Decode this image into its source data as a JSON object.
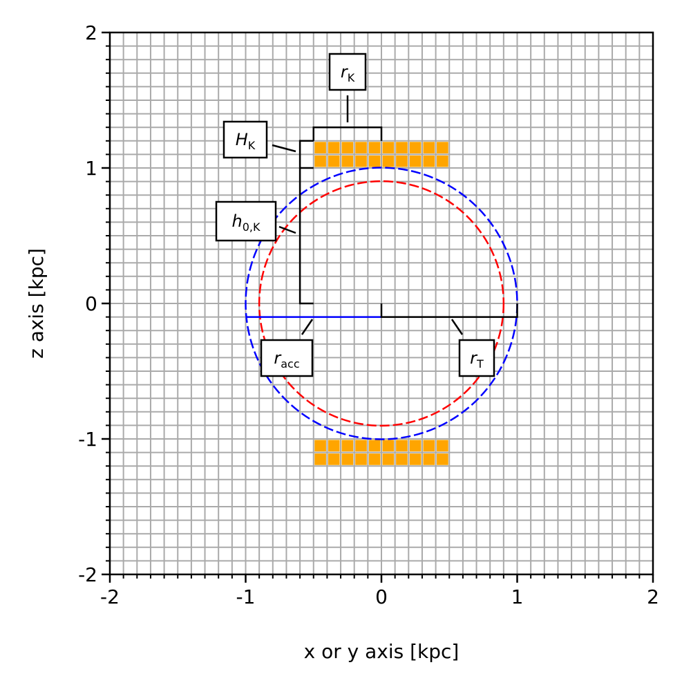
{
  "axes": {
    "xlabel": "x or y axis [kpc]",
    "ylabel": "z axis [kpc]",
    "xlim": [
      -2,
      2
    ],
    "ylim": [
      -2,
      2
    ],
    "x_ticks": [
      "-2",
      "-1",
      "0",
      "1",
      "2"
    ],
    "y_ticks": [
      "-2",
      "-1",
      "0",
      "1",
      "2"
    ],
    "grid_spacing_kpc": 0.1
  },
  "geometry_kpc": {
    "accretion_radius": 1.0,
    "torus_radius": 0.9,
    "kernel_radius": 0.5,
    "kernel_height": 0.2,
    "kernel_offset": 1.0,
    "kernel_cells": {
      "cols": 10,
      "rows": 2,
      "cell_size": 0.1
    }
  },
  "colors": {
    "grid": "#aaaaaa",
    "accretion_circle": "#0000ff",
    "torus_circle": "#ff0000",
    "kernel_cells": "#ffa500",
    "annotation": "#000000"
  },
  "annotations": [
    {
      "main": "r",
      "sub": "K"
    },
    {
      "main": "H",
      "sub": "K"
    },
    {
      "main": "h",
      "sub": "0,K"
    },
    {
      "main": "r",
      "sub": "acc"
    },
    {
      "main": "r",
      "sub": "T"
    }
  ]
}
